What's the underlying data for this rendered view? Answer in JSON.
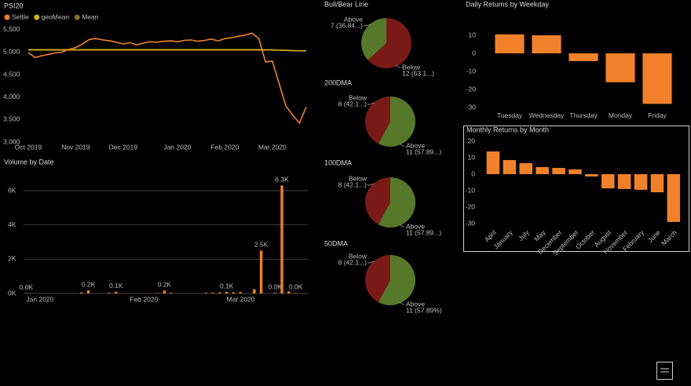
{
  "chart_data": [
    {
      "type": "line",
      "title": "PSI20",
      "categories": [
        "Oct 2019",
        null,
        null,
        null,
        null,
        null,
        null,
        "Nov 2019",
        null,
        null,
        null,
        null,
        null,
        null,
        "Dec 2019",
        null,
        null,
        null,
        null,
        null,
        null,
        null,
        "Jan 2020",
        null,
        null,
        null,
        null,
        null,
        null,
        "Feb 2020",
        null,
        null,
        null,
        null,
        null,
        null,
        "Mar 2020",
        null,
        null,
        null,
        null,
        null
      ],
      "series": [
        {
          "name": "Settle",
          "color": "#f0812a",
          "values": [
            4990,
            4880,
            4920,
            4950,
            4980,
            5000,
            5060,
            5100,
            5180,
            5280,
            5300,
            5270,
            5250,
            5220,
            5180,
            5210,
            5160,
            5200,
            5230,
            5220,
            5240,
            5250,
            5230,
            5260,
            5270,
            5240,
            5260,
            5290,
            5250,
            5300,
            5320,
            5350,
            5380,
            5420,
            5300,
            4780,
            4800,
            4300,
            3800,
            3600,
            3420,
            3780
          ]
        },
        {
          "name": "geoMean",
          "color": "#d4b21f",
          "values": [
            5045,
            5045,
            5045,
            5045,
            5045,
            5045,
            5045,
            5045,
            5045,
            5045,
            5045,
            5045,
            5045,
            5045,
            5045,
            5045,
            5045,
            5045,
            5045,
            5045,
            5045,
            5045,
            5045,
            5045,
            5045,
            5045,
            5045,
            5045,
            5045,
            5045,
            5045,
            5045,
            5045,
            5045,
            5045,
            5045,
            5045,
            5040,
            5035,
            5030,
            5025,
            5025
          ]
        },
        {
          "name": "Mean",
          "color": "#8a6d1e",
          "values": [
            5060,
            5060,
            5060,
            5060,
            5060,
            5060,
            5060,
            5060,
            5060,
            5060,
            5060,
            5060,
            5060,
            5060,
            5060,
            5060,
            5060,
            5060,
            5060,
            5060,
            5060,
            5060,
            5060,
            5060,
            5060,
            5060,
            5060,
            5060,
            5060,
            5060,
            5060,
            5060,
            5060,
            5060,
            5060,
            5055,
            5055,
            5050,
            5045,
            5040,
            5035,
            5035
          ]
        }
      ],
      "ylim": [
        3000,
        5600
      ],
      "yticks": [
        {
          "value": 3000,
          "label": "3,000"
        },
        {
          "value": 3500,
          "label": "3,500"
        },
        {
          "value": 4000,
          "label": "4,000"
        },
        {
          "value": 4500,
          "label": "4,500"
        },
        {
          "value": 5000,
          "label": "5,000"
        },
        {
          "value": 5500,
          "label": "5,500"
        }
      ],
      "grid": false
    },
    {
      "type": "bar",
      "title": "Volume by Date",
      "color": "#f0812a",
      "categories": [
        "Jan 2020",
        null,
        null,
        null,
        null,
        null,
        null,
        null,
        null,
        null,
        null,
        null,
        null,
        null,
        null,
        "Feb 2020",
        null,
        null,
        null,
        null,
        null,
        null,
        null,
        null,
        null,
        null,
        null,
        null,
        null,
        "Mar 2020",
        null,
        null,
        null,
        null,
        null,
        null,
        null,
        null,
        null,
        null,
        null
      ],
      "values": [
        20,
        0,
        0,
        0,
        0,
        0,
        0,
        10,
        60,
        180,
        0,
        0,
        40,
        100,
        0,
        0,
        0,
        0,
        0,
        30,
        170,
        40,
        0,
        0,
        0,
        0,
        40,
        50,
        60,
        90,
        70,
        80,
        0,
        250,
        2500,
        0,
        40,
        6300,
        120,
        30,
        0
      ],
      "value_labels": [
        "0.0K",
        null,
        null,
        null,
        null,
        null,
        null,
        null,
        null,
        "0.2K",
        null,
        null,
        null,
        "0.1K",
        null,
        null,
        null,
        null,
        null,
        null,
        "0.2K",
        null,
        null,
        null,
        null,
        null,
        null,
        null,
        null,
        "0.1K",
        null,
        null,
        null,
        null,
        "2.5K",
        null,
        "0.0K",
        "6.3K",
        null,
        "0.0K",
        null
      ],
      "ylim": [
        0,
        6600
      ],
      "yticks": [
        {
          "value": 0,
          "label": "0K"
        },
        {
          "value": 2000,
          "label": "2K"
        },
        {
          "value": 4000,
          "label": "4K"
        },
        {
          "value": 6000,
          "label": "6K"
        }
      ],
      "grid": true
    },
    {
      "type": "pie",
      "title": "Bull/Bear Line",
      "categories": [
        "Below",
        "Above"
      ],
      "values": [
        12,
        7
      ],
      "value_labels": [
        "12 (63.1...)",
        "7 (36.84...)"
      ],
      "colors": [
        "#7a1a17",
        "#56782a"
      ]
    },
    {
      "type": "pie",
      "title": "200DMA",
      "categories": [
        "Above",
        "Below"
      ],
      "values": [
        11,
        8
      ],
      "value_labels": [
        "11 (57.89...)",
        "8 (42.1...)"
      ],
      "colors": [
        "#56782a",
        "#7a1a17"
      ]
    },
    {
      "type": "pie",
      "title": "100DMA",
      "categories": [
        "Above",
        "Below"
      ],
      "values": [
        11,
        8
      ],
      "value_labels": [
        "11 (57.89...)",
        "8 (42.1...)"
      ],
      "colors": [
        "#56782a",
        "#7a1a17"
      ]
    },
    {
      "type": "pie",
      "title": "50DMA",
      "categories": [
        "Above",
        "Below"
      ],
      "values": [
        11,
        8
      ],
      "value_labels": [
        "11 (57.89%)",
        "8 (42.1...)"
      ],
      "colors": [
        "#56782a",
        "#7a1a17"
      ]
    },
    {
      "type": "bar",
      "title": "Daily Returns by Weekday",
      "color": "#f0812a",
      "categories": [
        "Tuesday",
        "Wednesday",
        "Thursday",
        "Monday",
        "Friday"
      ],
      "values": [
        10.5,
        10,
        -4.3,
        -16,
        -28
      ],
      "ylim": [
        -32,
        14
      ],
      "yticks": [
        -30,
        -20,
        -10,
        0,
        10
      ],
      "grid": false
    },
    {
      "type": "bar",
      "title": "Monthly Returns by Month",
      "color": "#f0812a",
      "categories": [
        "April",
        "January",
        "July",
        "May",
        "December",
        "September",
        "October",
        "August",
        "November",
        "February",
        "June",
        "March"
      ],
      "values": [
        13.8,
        8.6,
        6.7,
        4.3,
        3.8,
        2.9,
        -1.4,
        -8.6,
        -9,
        -9.5,
        -11,
        -29
      ],
      "ylim": [
        -32,
        22
      ],
      "yticks": [
        -30,
        -20,
        -10,
        0,
        10,
        20
      ],
      "grid": false
    }
  ]
}
